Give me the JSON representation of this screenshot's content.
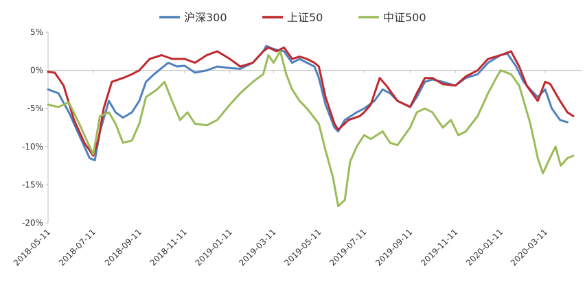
{
  "chart_data": {
    "type": "line",
    "title": "",
    "xlabel": "",
    "ylabel": "",
    "ylim": [
      -20,
      5
    ],
    "yticks": [
      5,
      0,
      -5,
      -10,
      -15,
      -20
    ],
    "ytick_labels": [
      "5%",
      "0%",
      "-5%",
      "-10%",
      "-15%",
      "-20%"
    ],
    "xlim": [
      "2018-05-11",
      "2020-04-30"
    ],
    "xtick_labels": [
      "2018-05-11",
      "2018-07-11",
      "2018-09-11",
      "2018-11-11",
      "2019-01-11",
      "2019-03-11",
      "2019-05-11",
      "2019-07-11",
      "2019-09-11",
      "2019-11-11",
      "2020-01-11",
      "2020-03-11"
    ],
    "grid": false,
    "legend": "top",
    "series": [
      {
        "name": "沪深300",
        "color": "#4f81bd",
        "points": [
          [
            "2018-05-11",
            -2.5
          ],
          [
            "2018-05-25",
            -3.0
          ],
          [
            "2018-06-08",
            -5.5
          ],
          [
            "2018-06-22",
            -8.5
          ],
          [
            "2018-07-06",
            -11.5
          ],
          [
            "2018-07-13",
            -11.8
          ],
          [
            "2018-07-20",
            -8.0
          ],
          [
            "2018-08-01",
            -4.0
          ],
          [
            "2018-08-10",
            -5.5
          ],
          [
            "2018-08-20",
            -6.2
          ],
          [
            "2018-09-01",
            -5.5
          ],
          [
            "2018-09-11",
            -4.0
          ],
          [
            "2018-09-20",
            -1.5
          ],
          [
            "2018-10-01",
            -0.5
          ],
          [
            "2018-10-11",
            0.3
          ],
          [
            "2018-10-20",
            1.0
          ],
          [
            "2018-11-01",
            0.5
          ],
          [
            "2018-11-11",
            0.6
          ],
          [
            "2018-11-25",
            -0.3
          ],
          [
            "2018-12-11",
            0.0
          ],
          [
            "2018-12-25",
            0.5
          ],
          [
            "2019-01-11",
            0.3
          ],
          [
            "2019-01-25",
            0.2
          ],
          [
            "2019-02-11",
            1.0
          ],
          [
            "2019-02-25",
            2.5
          ],
          [
            "2019-03-01",
            3.2
          ],
          [
            "2019-03-11",
            2.8
          ],
          [
            "2019-03-25",
            2.5
          ],
          [
            "2019-04-05",
            1.0
          ],
          [
            "2019-04-15",
            1.5
          ],
          [
            "2019-04-25",
            1.0
          ],
          [
            "2019-05-05",
            0.5
          ],
          [
            "2019-05-11",
            -1.0
          ],
          [
            "2019-05-20",
            -4.5
          ],
          [
            "2019-06-01",
            -7.5
          ],
          [
            "2019-06-06",
            -8.0
          ],
          [
            "2019-06-15",
            -6.5
          ],
          [
            "2019-07-01",
            -5.5
          ],
          [
            "2019-07-11",
            -5.0
          ],
          [
            "2019-07-25",
            -4.0
          ],
          [
            "2019-08-05",
            -2.5
          ],
          [
            "2019-08-15",
            -3.0
          ],
          [
            "2019-08-25",
            -4.0
          ],
          [
            "2019-09-05",
            -4.5
          ],
          [
            "2019-09-11",
            -4.8
          ],
          [
            "2019-09-20",
            -3.5
          ],
          [
            "2019-10-01",
            -1.5
          ],
          [
            "2019-10-11",
            -1.2
          ],
          [
            "2019-10-25",
            -1.5
          ],
          [
            "2019-11-11",
            -2.0
          ],
          [
            "2019-11-25",
            -1.0
          ],
          [
            "2019-12-11",
            -0.5
          ],
          [
            "2019-12-25",
            1.0
          ],
          [
            "2020-01-11",
            2.0
          ],
          [
            "2020-01-20",
            2.2
          ],
          [
            "2020-02-01",
            0.5
          ],
          [
            "2020-02-11",
            -1.5
          ],
          [
            "2020-02-20",
            -2.5
          ],
          [
            "2020-03-01",
            -3.5
          ],
          [
            "2020-03-11",
            -2.5
          ],
          [
            "2020-03-20",
            -5.0
          ],
          [
            "2020-03-31",
            -6.5
          ],
          [
            "2020-04-10",
            -6.8
          ]
        ]
      },
      {
        "name": "上证50",
        "color": "#c0282d",
        "points": [
          [
            "2018-05-11",
            -0.2
          ],
          [
            "2018-05-20",
            -0.3
          ],
          [
            "2018-06-01",
            -2.0
          ],
          [
            "2018-06-15",
            -6.5
          ],
          [
            "2018-06-29",
            -9.5
          ],
          [
            "2018-07-11",
            -11.2
          ],
          [
            "2018-07-18",
            -9.0
          ],
          [
            "2018-07-25",
            -5.0
          ],
          [
            "2018-08-05",
            -1.5
          ],
          [
            "2018-08-20",
            -1.0
          ],
          [
            "2018-09-01",
            -0.5
          ],
          [
            "2018-09-11",
            0.0
          ],
          [
            "2018-09-25",
            1.5
          ],
          [
            "2018-10-11",
            2.0
          ],
          [
            "2018-10-25",
            1.5
          ],
          [
            "2018-11-11",
            1.5
          ],
          [
            "2018-11-25",
            1.0
          ],
          [
            "2018-12-11",
            2.0
          ],
          [
            "2018-12-25",
            2.5
          ],
          [
            "2019-01-11",
            1.5
          ],
          [
            "2019-01-25",
            0.5
          ],
          [
            "2019-02-11",
            1.0
          ],
          [
            "2019-02-25",
            2.5
          ],
          [
            "2019-03-04",
            3.0
          ],
          [
            "2019-03-15",
            2.5
          ],
          [
            "2019-03-25",
            3.0
          ],
          [
            "2019-04-05",
            1.5
          ],
          [
            "2019-04-15",
            1.8
          ],
          [
            "2019-04-25",
            1.5
          ],
          [
            "2019-05-05",
            1.0
          ],
          [
            "2019-05-11",
            0.5
          ],
          [
            "2019-05-20",
            -3.5
          ],
          [
            "2019-06-01",
            -7.0
          ],
          [
            "2019-06-06",
            -7.8
          ],
          [
            "2019-06-20",
            -6.5
          ],
          [
            "2019-07-05",
            -6.0
          ],
          [
            "2019-07-11",
            -5.5
          ],
          [
            "2019-07-20",
            -4.5
          ],
          [
            "2019-08-01",
            -1.0
          ],
          [
            "2019-08-10",
            -2.0
          ],
          [
            "2019-08-25",
            -4.0
          ],
          [
            "2019-09-11",
            -4.8
          ],
          [
            "2019-09-20",
            -3.0
          ],
          [
            "2019-10-01",
            -1.0
          ],
          [
            "2019-10-11",
            -1.0
          ],
          [
            "2019-10-25",
            -1.8
          ],
          [
            "2019-11-11",
            -2.0
          ],
          [
            "2019-11-25",
            -0.8
          ],
          [
            "2019-12-11",
            0.0
          ],
          [
            "2019-12-25",
            1.5
          ],
          [
            "2020-01-11",
            2.0
          ],
          [
            "2020-01-25",
            2.5
          ],
          [
            "2020-02-05",
            0.5
          ],
          [
            "2020-02-15",
            -2.0
          ],
          [
            "2020-03-01",
            -4.0
          ],
          [
            "2020-03-11",
            -1.5
          ],
          [
            "2020-03-18",
            -1.8
          ],
          [
            "2020-03-31",
            -4.0
          ],
          [
            "2020-04-10",
            -5.5
          ],
          [
            "2020-04-18",
            -6.0
          ]
        ]
      },
      {
        "name": "中证500",
        "color": "#9bbb59",
        "points": [
          [
            "2018-05-11",
            -4.5
          ],
          [
            "2018-05-25",
            -4.8
          ],
          [
            "2018-06-08",
            -4.2
          ],
          [
            "2018-06-22",
            -7.0
          ],
          [
            "2018-07-06",
            -10.0
          ],
          [
            "2018-07-11",
            -11.0
          ],
          [
            "2018-07-20",
            -6.0
          ],
          [
            "2018-08-01",
            -5.5
          ],
          [
            "2018-08-10",
            -7.0
          ],
          [
            "2018-08-20",
            -9.5
          ],
          [
            "2018-09-01",
            -9.2
          ],
          [
            "2018-09-11",
            -7.0
          ],
          [
            "2018-09-20",
            -3.5
          ],
          [
            "2018-10-05",
            -2.5
          ],
          [
            "2018-10-15",
            -1.5
          ],
          [
            "2018-10-25",
            -4.0
          ],
          [
            "2018-11-05",
            -6.5
          ],
          [
            "2018-11-15",
            -5.5
          ],
          [
            "2018-11-25",
            -7.0
          ],
          [
            "2018-12-11",
            -7.2
          ],
          [
            "2018-12-25",
            -6.5
          ],
          [
            "2019-01-11",
            -4.5
          ],
          [
            "2019-01-25",
            -3.0
          ],
          [
            "2019-02-11",
            -1.5
          ],
          [
            "2019-02-25",
            -0.5
          ],
          [
            "2019-03-04",
            2.0
          ],
          [
            "2019-03-11",
            1.0
          ],
          [
            "2019-03-20",
            2.5
          ],
          [
            "2019-03-28",
            -0.5
          ],
          [
            "2019-04-05",
            -2.5
          ],
          [
            "2019-04-15",
            -4.0
          ],
          [
            "2019-04-25",
            -5.0
          ],
          [
            "2019-05-11",
            -7.0
          ],
          [
            "2019-05-20",
            -10.5
          ],
          [
            "2019-05-30",
            -14.0
          ],
          [
            "2019-06-06",
            -17.8
          ],
          [
            "2019-06-15",
            -17.0
          ],
          [
            "2019-06-22",
            -12.0
          ],
          [
            "2019-07-01",
            -10.0
          ],
          [
            "2019-07-11",
            -8.5
          ],
          [
            "2019-07-20",
            -9.0
          ],
          [
            "2019-08-05",
            -8.0
          ],
          [
            "2019-08-15",
            -9.5
          ],
          [
            "2019-08-25",
            -9.8
          ],
          [
            "2019-09-11",
            -7.5
          ],
          [
            "2019-09-20",
            -5.5
          ],
          [
            "2019-10-01",
            -5.0
          ],
          [
            "2019-10-11",
            -5.5
          ],
          [
            "2019-10-25",
            -7.5
          ],
          [
            "2019-11-05",
            -6.5
          ],
          [
            "2019-11-15",
            -8.5
          ],
          [
            "2019-11-25",
            -8.0
          ],
          [
            "2019-12-11",
            -6.0
          ],
          [
            "2019-12-25",
            -3.0
          ],
          [
            "2020-01-05",
            -1.0
          ],
          [
            "2020-01-11",
            0.0
          ],
          [
            "2020-01-25",
            -0.5
          ],
          [
            "2020-02-05",
            -2.0
          ],
          [
            "2020-02-20",
            -7.0
          ],
          [
            "2020-03-01",
            -11.5
          ],
          [
            "2020-03-08",
            -13.5
          ],
          [
            "2020-03-15",
            -12.0
          ],
          [
            "2020-03-25",
            -10.0
          ],
          [
            "2020-04-01",
            -12.5
          ],
          [
            "2020-04-10",
            -11.5
          ],
          [
            "2020-04-18",
            -11.2
          ]
        ]
      }
    ]
  }
}
